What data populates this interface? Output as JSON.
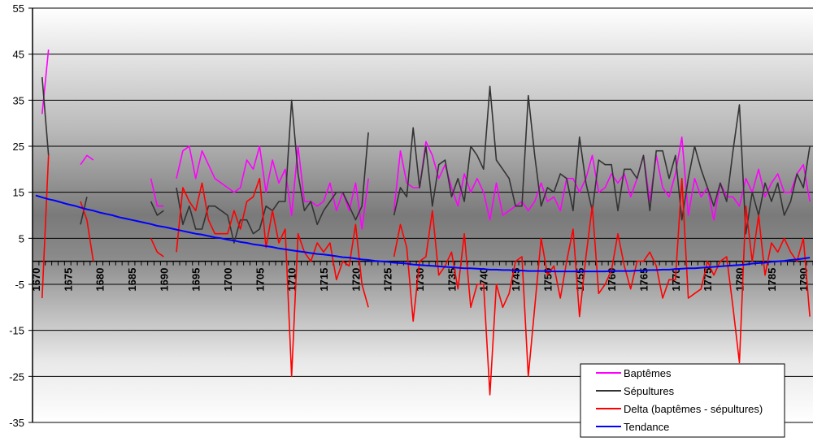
{
  "chart_data": {
    "type": "line",
    "title": "",
    "xlabel": "",
    "ylabel": "",
    "ylim": [
      -35,
      55
    ],
    "y_ticks": [
      "55",
      "45",
      "35",
      "25",
      "15",
      "5",
      "-5",
      "-15",
      "-25",
      "-35"
    ],
    "y_tick_values": [
      55,
      45,
      35,
      25,
      15,
      5,
      -5,
      -15,
      -25,
      -35
    ],
    "x_start": 1670,
    "x_end": 1791,
    "x_tick_labels": [
      "1670",
      "1675",
      "1680",
      "1685",
      "1690",
      "1695",
      "1700",
      "1705",
      "1710",
      "1715",
      "1720",
      "1725",
      "1730",
      "1735",
      "1740",
      "1745",
      "1750",
      "1755",
      "1760",
      "1765",
      "1770",
      "1775",
      "1780",
      "1785",
      "1790"
    ],
    "grid": true,
    "legend_position": "bottom-right",
    "series": [
      {
        "name": "Baptêmes",
        "color": "#ff00ff",
        "values": [
          null,
          32,
          46,
          null,
          null,
          null,
          null,
          21,
          23,
          22,
          null,
          null,
          null,
          null,
          null,
          null,
          null,
          null,
          18,
          12,
          12,
          null,
          18,
          24,
          25,
          18,
          24,
          21,
          18,
          17,
          16,
          15,
          16,
          22,
          20,
          25,
          15,
          22,
          17,
          20,
          10,
          25,
          13,
          13,
          12,
          13,
          17,
          11,
          15,
          11,
          17,
          7,
          18,
          null,
          null,
          null,
          11,
          24,
          17,
          16,
          16,
          26,
          23,
          18,
          21,
          16,
          12,
          19,
          15,
          18,
          15,
          9,
          17,
          10,
          11,
          12,
          13,
          11,
          13,
          17,
          13,
          14,
          11,
          18,
          18,
          15,
          18,
          23,
          15,
          16,
          19,
          17,
          19,
          14,
          18,
          23,
          13,
          23,
          16,
          14,
          19,
          27,
          10,
          18,
          14,
          16,
          9,
          17,
          14,
          14,
          12,
          18,
          15,
          20,
          14,
          17,
          19,
          15,
          15,
          19,
          21,
          13
        ]
      },
      {
        "name": "Sépultures",
        "color": "#333333",
        "values": [
          null,
          40,
          23,
          null,
          null,
          null,
          null,
          8,
          14,
          null,
          null,
          null,
          null,
          null,
          null,
          null,
          null,
          null,
          13,
          10,
          11,
          null,
          16,
          8,
          12,
          7,
          7,
          12,
          12,
          11,
          10,
          4,
          9,
          9,
          6,
          7,
          12,
          11,
          13,
          13,
          35,
          19,
          11,
          13,
          8,
          11,
          13,
          15,
          15,
          12,
          9,
          12,
          28,
          null,
          null,
          null,
          10,
          16,
          14,
          29,
          16,
          25,
          12,
          21,
          22,
          14,
          18,
          13,
          25,
          23,
          20,
          38,
          22,
          20,
          18,
          12,
          12,
          36,
          23,
          12,
          16,
          15,
          19,
          18,
          11,
          27,
          17,
          11,
          22,
          21,
          21,
          11,
          20,
          20,
          18,
          23,
          11,
          24,
          24,
          18,
          23,
          9,
          18,
          25,
          20,
          16,
          12,
          17,
          13,
          24,
          34,
          6,
          15,
          10,
          17,
          13,
          17,
          10,
          13,
          19,
          16,
          25
        ]
      },
      {
        "name": "Delta (baptêmes - sépultures)",
        "color": "#ff0000",
        "values": [
          null,
          -8,
          23,
          null,
          null,
          null,
          null,
          13,
          9,
          0,
          null,
          null,
          null,
          null,
          null,
          null,
          null,
          null,
          5,
          2,
          1,
          null,
          2,
          16,
          13,
          11,
          17,
          9,
          6,
          6,
          6,
          11,
          7,
          13,
          14,
          18,
          3,
          11,
          4,
          7,
          -25,
          6,
          2,
          0,
          4,
          2,
          4,
          -4,
          0,
          -1,
          8,
          -5,
          -10,
          null,
          null,
          null,
          1,
          8,
          3,
          -13,
          0,
          1,
          11,
          -3,
          -1,
          2,
          -6,
          6,
          -10,
          -5,
          -5,
          -29,
          -5,
          -10,
          -7,
          0,
          1,
          -25,
          -10,
          5,
          -3,
          -1,
          -8,
          0,
          7,
          -12,
          1,
          12,
          -7,
          -5,
          -2,
          6,
          -1,
          -6,
          0,
          0,
          2,
          -1,
          -8,
          -4,
          -4,
          18,
          -8,
          -7,
          -6,
          0,
          -3,
          0,
          1,
          -10,
          -22,
          12,
          0,
          10,
          -3,
          4,
          2,
          5,
          2,
          0,
          5,
          -12
        ]
      },
      {
        "name": "Tendance",
        "color": "#0000ff",
        "values": [
          14.3,
          13.9,
          13.5,
          13.2,
          12.8,
          12.4,
          12.1,
          11.7,
          11.3,
          11.0,
          10.6,
          10.3,
          10.0,
          9.6,
          9.3,
          9.0,
          8.7,
          8.4,
          8.1,
          7.7,
          7.5,
          7.2,
          6.9,
          6.6,
          6.3,
          6.0,
          5.8,
          5.5,
          5.2,
          5.0,
          4.7,
          4.5,
          4.2,
          4.0,
          3.7,
          3.5,
          3.3,
          3.1,
          2.8,
          2.6,
          2.4,
          2.2,
          2.0,
          1.8,
          1.6,
          1.5,
          1.3,
          1.1,
          0.9,
          0.8,
          0.6,
          0.4,
          0.3,
          0.1,
          0.0,
          -0.1,
          -0.3,
          -0.4,
          -0.5,
          -0.7,
          -0.8,
          -0.9,
          -1.0,
          -1.1,
          -1.2,
          -1.3,
          -1.4,
          -1.5,
          -1.5,
          -1.6,
          -1.7,
          -1.8,
          -1.8,
          -1.9,
          -1.9,
          -2.0,
          -2.0,
          -2.1,
          -2.1,
          -2.1,
          -2.1,
          -2.2,
          -2.2,
          -2.2,
          -2.2,
          -2.2,
          -2.2,
          -2.2,
          -2.2,
          -2.2,
          -2.1,
          -2.1,
          -2.1,
          -2.1,
          -2.0,
          -2.0,
          -1.9,
          -1.9,
          -1.8,
          -1.8,
          -1.7,
          -1.6,
          -1.5,
          -1.5,
          -1.4,
          -1.3,
          -1.2,
          -1.1,
          -1.0,
          -0.9,
          -0.8,
          -0.7,
          -0.5,
          -0.4,
          -0.3,
          -0.1,
          0.0,
          0.1,
          0.3,
          0.4,
          0.6,
          0.8
        ]
      }
    ]
  }
}
